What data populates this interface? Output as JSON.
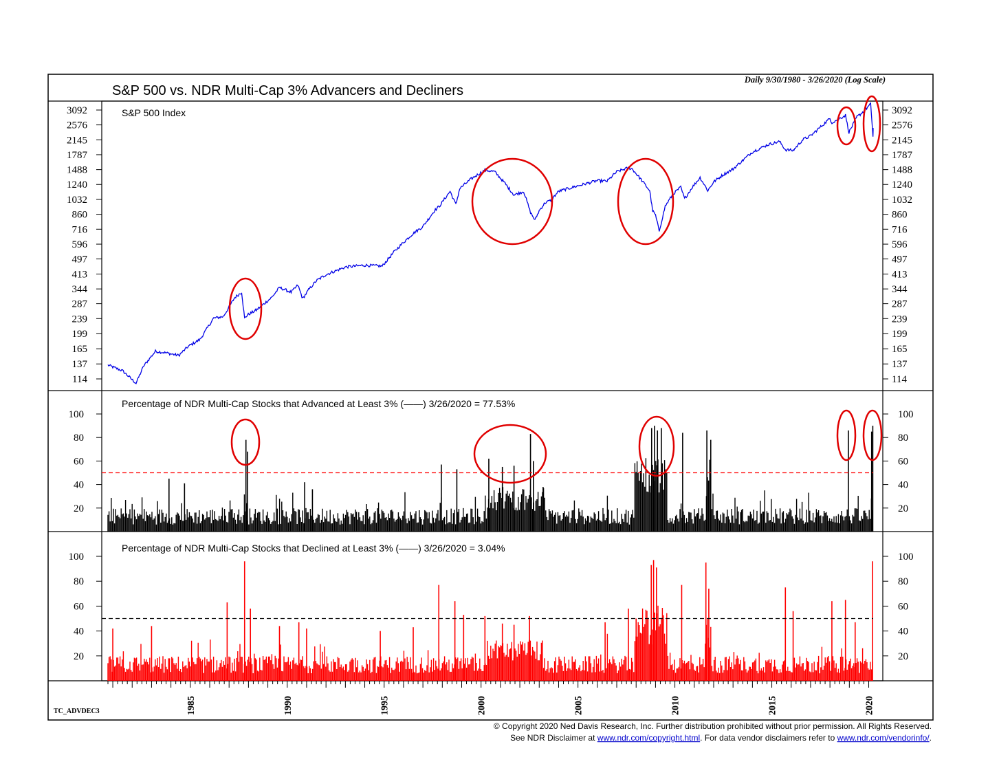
{
  "chart_data": {
    "type": "line",
    "title": "S&P 500 vs. NDR Multi-Cap 3% Advancers and Decliners",
    "date_range_note": "Daily 9/30/1980 - 3/26/2020 (Log Scale)",
    "chart_code": "TC_ADVDEC3",
    "x_tick_labels": [
      "1985",
      "1990",
      "1995",
      "2000",
      "2005",
      "2010",
      "2015",
      "2020"
    ],
    "x_range": [
      1980.75,
      2020.23
    ],
    "copyright_line1": "© Copyright 2020 Ned Davis Research, Inc.  Further distribution prohibited without prior permission.  All Rights Reserved.",
    "copyright_line2_pre": "See NDR Disclaimer at ",
    "copyright_link1": "www.ndr.com/copyright.html",
    "copyright_line2_mid": ". For data vendor disclaimers refer to ",
    "copyright_link2": "www.ndr.com/vendorinfo/",
    "copyright_line2_post": ".",
    "panels": [
      {
        "id": "sp500",
        "type": "line",
        "scale": "log",
        "label": "S&P 500 Index",
        "label_color": "#1a1aff",
        "line_color": "#0000e6",
        "y_tick_labels": [
          "3092",
          "2576",
          "2145",
          "1787",
          "1488",
          "1240",
          "1032",
          "860",
          "716",
          "596",
          "497",
          "413",
          "344",
          "287",
          "239",
          "199",
          "165",
          "137",
          "114"
        ],
        "series": {
          "x": [
            1980.75,
            1981.5,
            1982.2,
            1982.6,
            1983.2,
            1983.6,
            1984.4,
            1984.9,
            1985.5,
            1986.2,
            1986.7,
            1987.3,
            1987.65,
            1987.8,
            1987.95,
            1988.4,
            1989.2,
            1989.6,
            1990.2,
            1990.55,
            1990.8,
            1991.1,
            1991.5,
            1992.0,
            1993.0,
            1994.0,
            1994.9,
            1995.5,
            1996.0,
            1996.5,
            1997.0,
            1997.6,
            1997.85,
            1998.4,
            1998.7,
            1998.9,
            1999.5,
            2000.2,
            2000.7,
            2001.2,
            2001.7,
            2002.2,
            2002.55,
            2002.78,
            2003.0,
            2003.3,
            2003.6,
            2004.0,
            2005.0,
            2006.0,
            2006.5,
            2007.0,
            2007.6,
            2007.8,
            2008.3,
            2008.7,
            2008.85,
            2009.0,
            2009.19,
            2009.5,
            2009.9,
            2010.3,
            2010.5,
            2010.9,
            2011.3,
            2011.7,
            2012.0,
            2012.5,
            2013.0,
            2014.0,
            2014.8,
            2015.4,
            2015.7,
            2016.1,
            2016.6,
            2017.0,
            2018.0,
            2018.1,
            2018.8,
            2018.98,
            2019.4,
            2019.6,
            2020.1,
            2020.22,
            2020.23
          ],
          "y": [
            135,
            126,
            108,
            134,
            160,
            158,
            152,
            170,
            185,
            240,
            245,
            310,
            330,
            240,
            250,
            265,
            310,
            350,
            330,
            360,
            305,
            340,
            380,
            410,
            450,
            460,
            455,
            540,
            610,
            680,
            740,
            900,
            950,
            1140,
            970,
            1180,
            1330,
            1480,
            1450,
            1270,
            1090,
            1140,
            880,
            800,
            900,
            990,
            1020,
            1140,
            1220,
            1300,
            1290,
            1450,
            1520,
            1500,
            1300,
            1150,
            900,
            850,
            700,
            950,
            1100,
            1200,
            1040,
            1200,
            1350,
            1150,
            1280,
            1400,
            1500,
            1850,
            2020,
            2100,
            1900,
            1880,
            2150,
            2250,
            2790,
            2650,
            2900,
            2350,
            2850,
            2950,
            3320,
            2240,
            2480
          ]
        },
        "highlights": [
          "1987 crash",
          "2000-2002 bear market",
          "2008-2009 crisis",
          "late 2018 decline",
          "2020 decline"
        ]
      },
      {
        "id": "advanced",
        "type": "bar",
        "label": "Percentage of NDR Multi-Cap Stocks that Advanced at Least 3% (——) 3/26/2020 = 77.53%",
        "label_color": "#000000",
        "bar_color": "#000000",
        "threshold": 50,
        "threshold_color": "#ff0000",
        "y_tick_labels": [
          "100",
          "80",
          "60",
          "40",
          "20"
        ],
        "ylim": [
          0,
          100
        ],
        "spikes": {
          "x": [
            1983.9,
            1984.7,
            1987.87,
            1987.95,
            1990.9,
            1991.3,
            1997.95,
            1998.75,
            2000.4,
            2001.1,
            2001.7,
            2002.55,
            2002.7,
            2003.2,
            2008.8,
            2008.95,
            2009.1,
            2009.3,
            2010.4,
            2011.65,
            2011.85,
            2018.95,
            2020.15,
            2020.21
          ],
          "y": [
            45,
            41,
            78,
            68,
            42,
            36,
            57,
            53,
            62,
            55,
            56,
            83,
            60,
            38,
            88,
            90,
            86,
            88,
            84,
            86,
            78,
            86,
            85,
            90
          ]
        },
        "elevated_regions": [
          [
            2000.3,
            2003.3,
            35
          ],
          [
            2007.9,
            2009.6,
            60
          ],
          [
            2011.6,
            2011.9,
            60
          ]
        ]
      },
      {
        "id": "declined",
        "type": "bar",
        "label": "Percentage of NDR Multi-Cap Stocks that Declined at Least 3% (——) 3/26/2020 = 3.04%",
        "label_color": "#ff0000",
        "bar_color": "#ff0000",
        "threshold": 50,
        "threshold_color": "#000000",
        "y_tick_labels": [
          "100",
          "80",
          "60",
          "40",
          "20"
        ],
        "ylim": [
          0,
          100
        ],
        "spikes": {
          "x": [
            1981.0,
            1983.0,
            1986.9,
            1987.8,
            1988.1,
            1989.6,
            1990.6,
            1991.0,
            1994.8,
            1996.5,
            1997.82,
            1998.65,
            1999.1,
            2000.2,
            2001.1,
            2001.7,
            2002.5,
            2006.4,
            2007.6,
            2008.0,
            2008.78,
            2008.9,
            2009.05,
            2010.35,
            2011.6,
            2011.75,
            2015.7,
            2016.1,
            2018.1,
            2018.8,
            2019.3,
            2020.2
          ],
          "y": [
            42,
            44,
            63,
            96,
            58,
            44,
            47,
            42,
            40,
            43,
            77,
            64,
            53,
            52,
            46,
            45,
            52,
            47,
            58,
            50,
            93,
            97,
            91,
            77,
            95,
            74,
            75,
            56,
            64,
            65,
            47,
            96
          ]
        },
        "elevated_regions": [
          [
            2000.3,
            2003.2,
            30
          ],
          [
            2007.9,
            2009.6,
            55
          ],
          [
            2011.55,
            2011.9,
            50
          ]
        ]
      }
    ]
  }
}
